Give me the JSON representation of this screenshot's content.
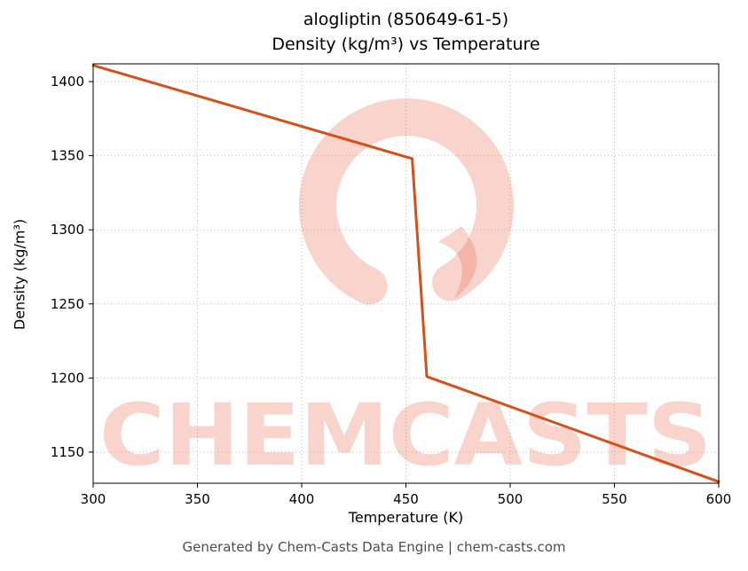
{
  "title_line1": "alogliptin (850649-61-5)",
  "title_line2": "Density (kg/m³) vs Temperature",
  "footer": "Generated by Chem-Casts Data Engine | chem-casts.com",
  "watermark": {
    "text": "CHEMCASTS",
    "color": "rgba(232,84,55,0.25)"
  },
  "chart_data": {
    "type": "line",
    "title": "alogliptin (850649-61-5) — Density (kg/m³) vs Temperature",
    "xlabel": "Temperature (K)",
    "ylabel": "Density (kg/m³)",
    "series": [
      {
        "name": "Density",
        "x": [
          300,
          453,
          460,
          600
        ],
        "y": [
          1411,
          1348,
          1201,
          1130
        ]
      }
    ],
    "line_color": "#d4521a",
    "line_width": 3,
    "xlim": [
      300,
      600
    ],
    "ylim": [
      1129,
      1412
    ],
    "xticks": [
      300,
      350,
      400,
      450,
      500,
      550,
      600
    ],
    "yticks": [
      1150,
      1200,
      1250,
      1300,
      1350,
      1400
    ],
    "grid": true,
    "grid_style": "dotted",
    "grid_color": "#bfbfbf",
    "legend": "none"
  }
}
